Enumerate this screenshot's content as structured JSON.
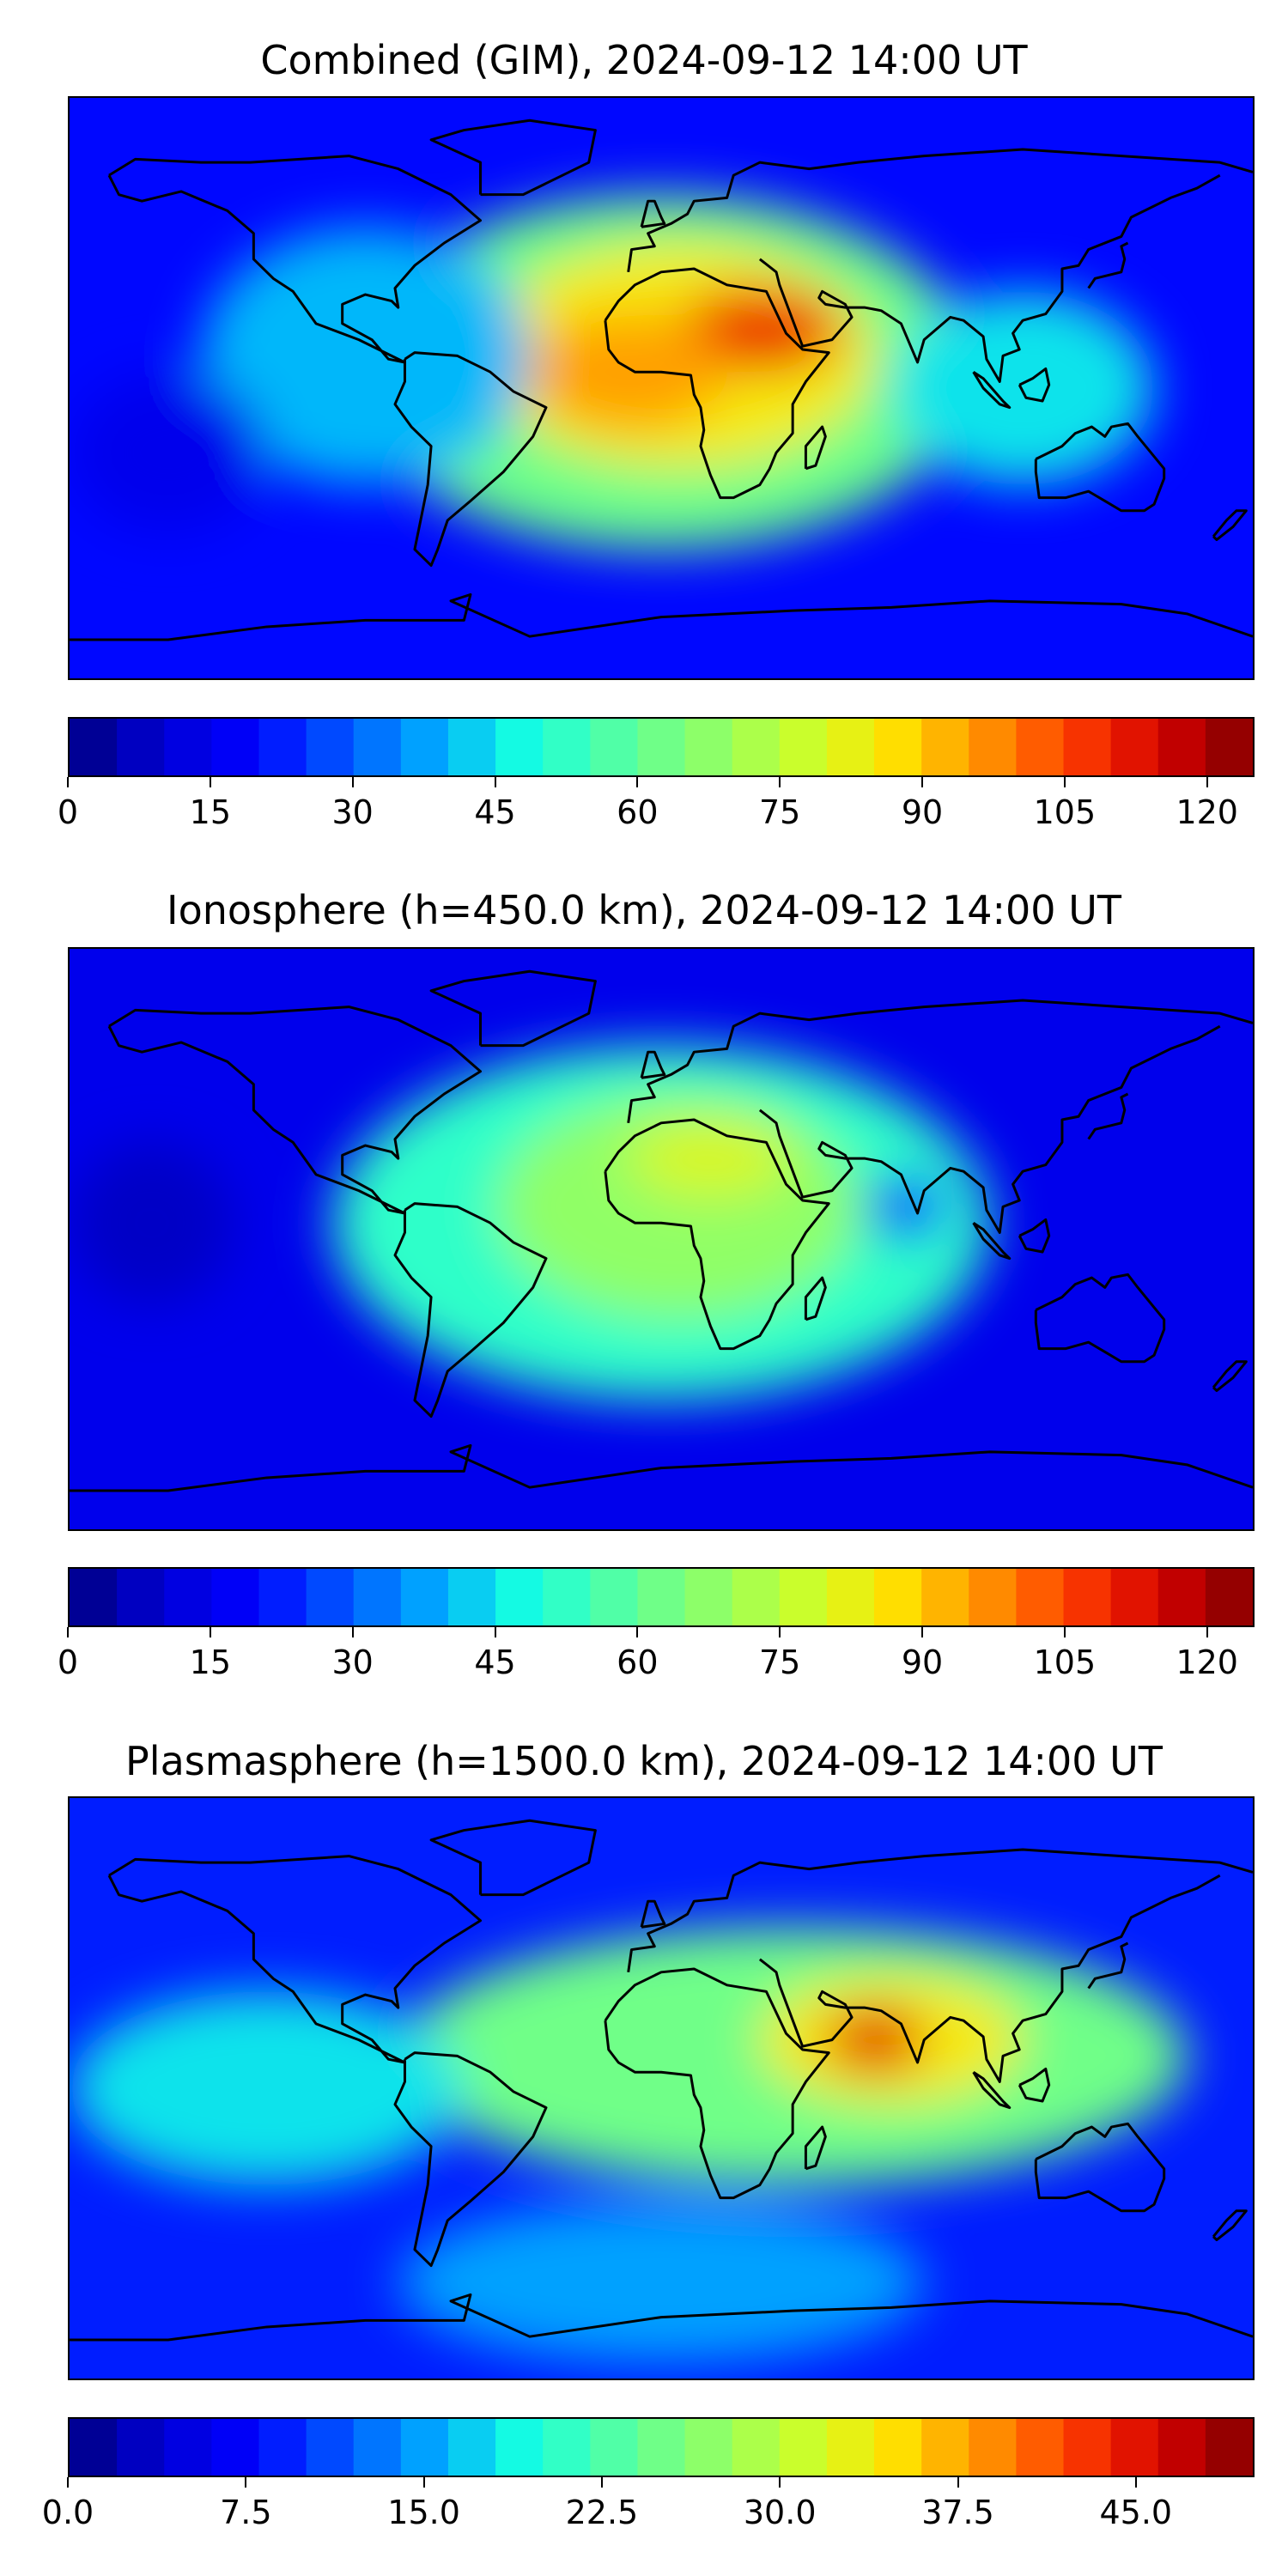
{
  "panels": [
    {
      "title": "Combined (GIM), 2024-09-12 14:00 UT",
      "colorbar": {
        "levels": 25,
        "min": 0,
        "max": 125,
        "tick_labels": [
          "0",
          "15",
          "30",
          "45",
          "60",
          "75",
          "90",
          "105",
          "120"
        ],
        "tick_values": [
          0,
          15,
          30,
          45,
          60,
          75,
          90,
          105,
          120
        ]
      },
      "field": {
        "background_value": 20,
        "blobs": [
          {
            "lon": 0,
            "lat": 5,
            "rx": 95,
            "ry": 55,
            "v": 62
          },
          {
            "lon": 5,
            "lat": 10,
            "rx": 60,
            "ry": 35,
            "v": 85
          },
          {
            "lon": 30,
            "lat": 18,
            "rx": 25,
            "ry": 13,
            "v": 110
          },
          {
            "lon": -10,
            "lat": 5,
            "rx": 30,
            "ry": 18,
            "v": 95
          },
          {
            "lon": 110,
            "lat": 0,
            "rx": 40,
            "ry": 30,
            "v": 45
          },
          {
            "lon": -90,
            "lat": 10,
            "rx": 50,
            "ry": 40,
            "v": 40
          },
          {
            "lon": -150,
            "lat": -20,
            "rx": 30,
            "ry": 25,
            "v": 15
          }
        ]
      }
    },
    {
      "title": "Ionosphere  (h=450.0 km), 2024-09-12 14:00 UT",
      "colorbar": {
        "levels": 25,
        "min": 0,
        "max": 125,
        "tick_labels": [
          "0",
          "15",
          "30",
          "45",
          "60",
          "75",
          "90",
          "105",
          "120"
        ],
        "tick_values": [
          0,
          15,
          30,
          45,
          60,
          75,
          90,
          105,
          120
        ]
      },
      "field": {
        "background_value": 15,
        "blobs": [
          {
            "lon": 0,
            "lat": 5,
            "rx": 100,
            "ry": 55,
            "v": 52
          },
          {
            "lon": 5,
            "lat": 10,
            "rx": 55,
            "ry": 35,
            "v": 68
          },
          {
            "lon": 15,
            "lat": 25,
            "rx": 25,
            "ry": 12,
            "v": 80
          },
          {
            "lon": 75,
            "lat": 10,
            "rx": 12,
            "ry": 10,
            "v": 20
          },
          {
            "lon": -155,
            "lat": 5,
            "rx": 25,
            "ry": 25,
            "v": 8
          }
        ]
      }
    },
    {
      "title": "Plasmasphere (h=1500.0 km), 2024-09-12 14:00 UT",
      "colorbar": {
        "levels": 25,
        "min": 0,
        "max": 50,
        "tick_labels": [
          "0.0",
          "7.5",
          "15.0",
          "22.5",
          "30.0",
          "37.5",
          "45.0"
        ],
        "tick_values": [
          0,
          7.5,
          15,
          22.5,
          30,
          37.5,
          45
        ]
      },
      "field": {
        "background_value": 9,
        "blobs": [
          {
            "lon": 40,
            "lat": 10,
            "rx": 120,
            "ry": 40,
            "v": 25
          },
          {
            "lon": 70,
            "lat": 15,
            "rx": 40,
            "ry": 20,
            "v": 34
          },
          {
            "lon": 65,
            "lat": 15,
            "rx": 15,
            "ry": 10,
            "v": 45
          },
          {
            "lon": -120,
            "lat": 0,
            "rx": 60,
            "ry": 30,
            "v": 18
          },
          {
            "lon": 0,
            "lat": -60,
            "rx": 80,
            "ry": 25,
            "v": 15
          }
        ]
      }
    }
  ],
  "colormap": [
    "#00007f",
    "#0000d4",
    "#0000ff",
    "#0055ff",
    "#00a9ff",
    "#15ffe1",
    "#51ffa6",
    "#8cff6a",
    "#c7ff2f",
    "#ffe600",
    "#ff9600",
    "#ff3e00",
    "#d40000",
    "#7f0000"
  ]
}
